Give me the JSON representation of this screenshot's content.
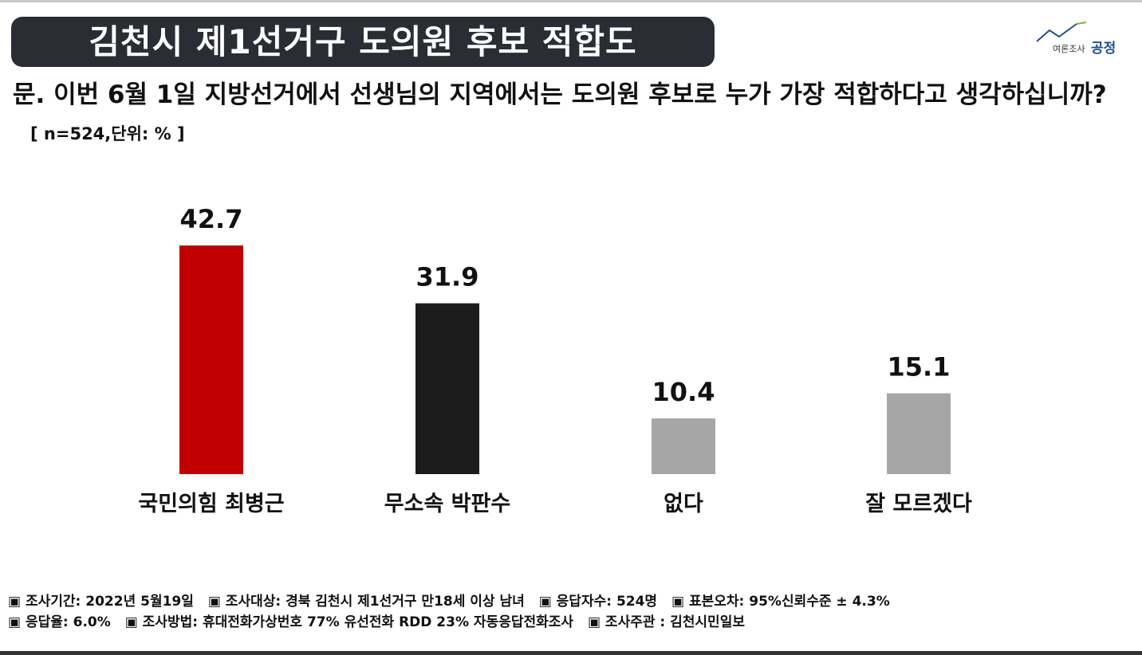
{
  "title": "김천시 제1선거구 도의원 후보 적합도",
  "logo": {
    "sub": "여론조사",
    "main": "공정"
  },
  "question": {
    "text": "문. 이번 6월 1일 지방선거에서 선생님의 지역에서는 도의원 후보로 누가 가장 적합하다고 생각하십니까?",
    "note": "[ n=524,단위: % ]"
  },
  "chart_data": {
    "type": "bar",
    "categories": [
      "국민의힘 최병근",
      "무소속 박판수",
      "없다",
      "잘 모르겠다"
    ],
    "values": [
      42.7,
      31.9,
      10.4,
      15.1
    ],
    "colors": [
      "#c00000",
      "#1c1c1c",
      "#a6a6a6",
      "#a6a6a6"
    ],
    "ylim": [
      0,
      50
    ],
    "title": "",
    "xlabel": "",
    "ylabel": ""
  },
  "footer": {
    "line1": [
      "▣ 조사기간: 2022년 5월19일",
      "▣ 조사대상: 경북 김천시 제1선거구 만18세 이상 남녀",
      "▣ 응답자수: 524명",
      "▣ 표본오차: 95%신뢰수준 ± 4.3%"
    ],
    "line2": [
      "▣ 응답율: 6.0%",
      "▣ 조사방법: 휴대전화가상번호 77% 유선전화 RDD 23% 자동응답전화조사",
      "▣ 조사주관 : 김천시민일보"
    ]
  }
}
